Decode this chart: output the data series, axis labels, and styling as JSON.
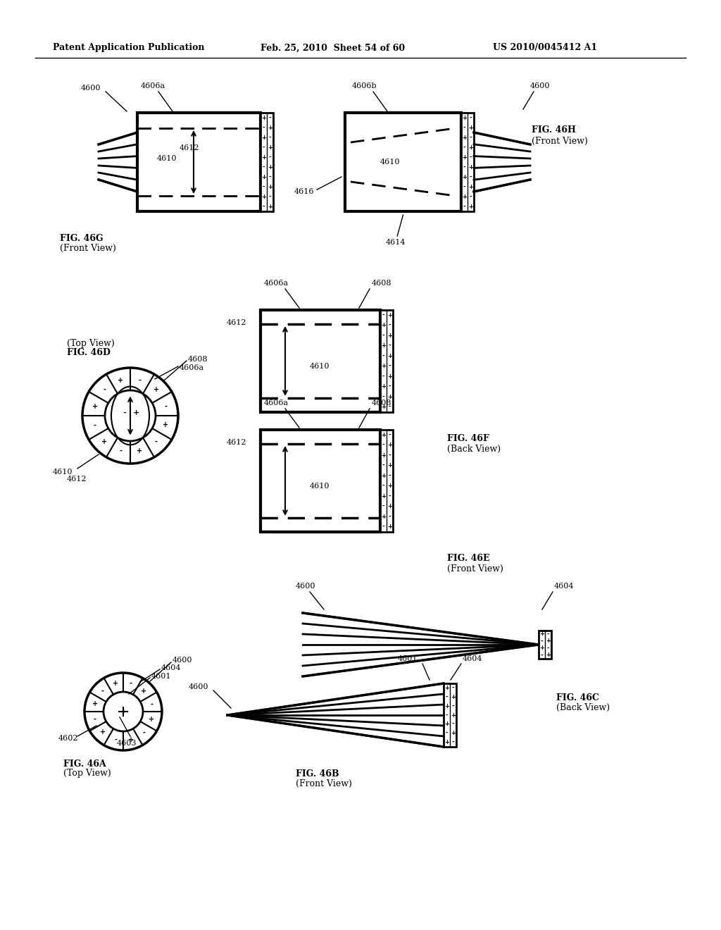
{
  "bg_color": "#ffffff",
  "header_left": "Patent Application Publication",
  "header_mid": "Feb. 25, 2010  Sheet 54 of 60",
  "header_right": "US 2010/0045412 A1"
}
